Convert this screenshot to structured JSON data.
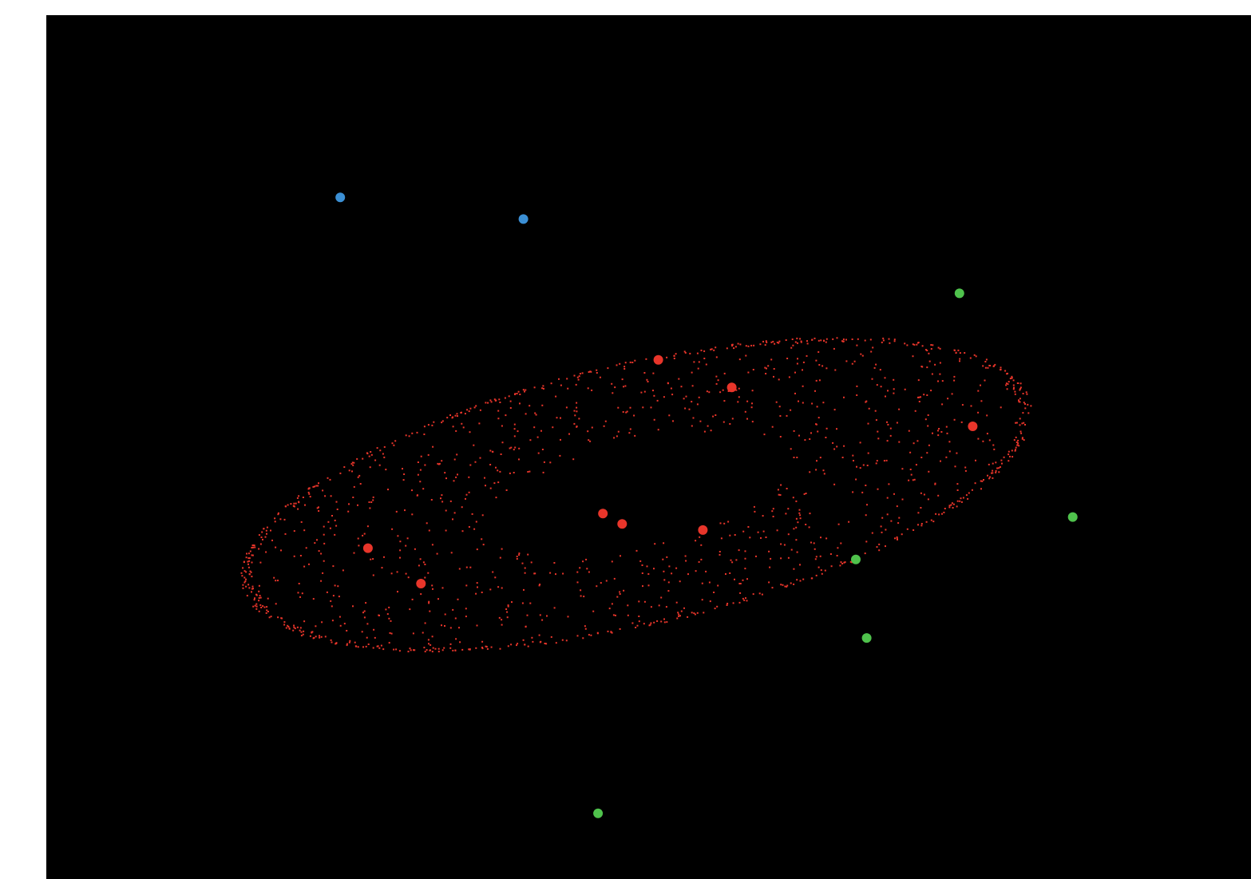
{
  "chart_data": {
    "type": "scatter",
    "title": "",
    "xlabel": "",
    "ylabel": "",
    "grid": false,
    "legend": "none",
    "background_color": "#000000",
    "xlim": [
      0,
      100
    ],
    "ylim": [
      0,
      100
    ],
    "cloud": {
      "shape": "rotated ellipse of small scattered points",
      "color": "#e8352a",
      "center": [
        49.0,
        44.5
      ],
      "semi_axes": [
        34.5,
        14.8
      ],
      "rotation_deg": 20,
      "point_count": 1500
    },
    "series": [
      {
        "color": "#e8352a",
        "points": [
          [
            26.7,
            38.3
          ],
          [
            31.1,
            34.2
          ],
          [
            46.2,
            42.3
          ],
          [
            47.8,
            41.1
          ],
          [
            50.8,
            60.1
          ],
          [
            54.5,
            40.4
          ],
          [
            56.9,
            56.9
          ],
          [
            76.9,
            52.4
          ]
        ]
      },
      {
        "color": "#3b8fd4",
        "points": [
          [
            24.4,
            78.9
          ],
          [
            39.6,
            76.4
          ]
        ]
      },
      {
        "color": "#4fc24c",
        "points": [
          [
            75.8,
            67.8
          ],
          [
            85.2,
            41.9
          ],
          [
            67.2,
            37.0
          ],
          [
            68.1,
            27.9
          ],
          [
            45.8,
            7.6
          ]
        ]
      }
    ]
  }
}
